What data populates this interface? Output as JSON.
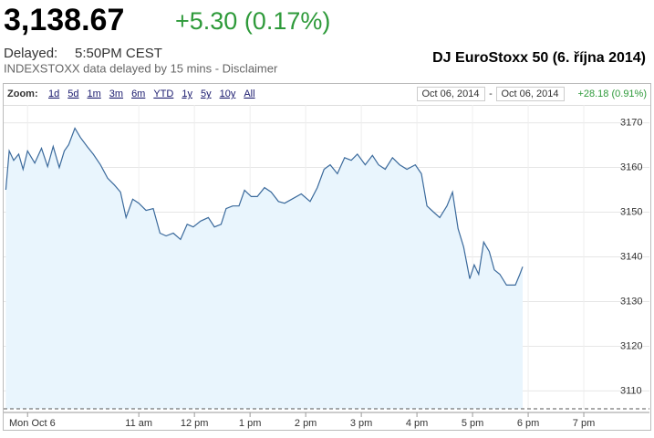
{
  "header": {
    "price": "3,138.67",
    "change": "+5.30 (0.17%)",
    "delayed_label": "Delayed:",
    "delayed_time": "5:50PM CEST",
    "source_note": "INDEXSTOXX data delayed by 15 mins - Disclaimer",
    "title": "DJ EuroStoxx 50 (6. října 2014)"
  },
  "toolbar": {
    "zoom_label": "Zoom:",
    "zoom_options": [
      "1d",
      "5d",
      "1m",
      "3m",
      "6m",
      "YTD",
      "1y",
      "5y",
      "10y",
      "All"
    ],
    "range_start": "Oct 06, 2014",
    "range_separator": "-",
    "range_end": "Oct 06, 2014",
    "range_change": "+28.18 (0.91%)"
  },
  "chart_data": {
    "type": "area",
    "color": "#3b6a9c",
    "fill_color": "#e9f5fd",
    "grid": true,
    "x": [
      8.61,
      8.67,
      8.75,
      8.84,
      8.92,
      9,
      9.13,
      9.25,
      9.36,
      9.46,
      9.57,
      9.66,
      9.74,
      9.85,
      9.95,
      10.07,
      10.18,
      10.31,
      10.44,
      10.56,
      10.67,
      10.77,
      10.89,
      11,
      11.13,
      11.26,
      11.38,
      11.49,
      11.62,
      11.75,
      11.87,
      11.98,
      12.11,
      12.25,
      12.36,
      12.48,
      12.57,
      12.69,
      12.8,
      12.9,
      13.02,
      13.13,
      13.26,
      13.38,
      13.51,
      13.62,
      13.75,
      13.92,
      14.08,
      14.21,
      14.33,
      14.44,
      14.57,
      14.7,
      14.82,
      14.93,
      15.07,
      15.2,
      15.31,
      15.43,
      15.56,
      15.69,
      15.82,
      15.97,
      16.08,
      16.18,
      16.3,
      16.41,
      16.54,
      16.64,
      16.74,
      16.84,
      16.95,
      17.03,
      17.11,
      17.2,
      17.3,
      17.39,
      17.49,
      17.61,
      17.77,
      17.85,
      17.9
    ],
    "values": [
      3155,
      3163.7,
      3161.6,
      3163,
      3159.6,
      3163.7,
      3161,
      3164.3,
      3160.2,
      3164.7,
      3160,
      3163.7,
      3165.1,
      3168.8,
      3166.7,
      3164.7,
      3163,
      3160.6,
      3157.6,
      3156.1,
      3154.5,
      3148.8,
      3152.9,
      3152,
      3150.4,
      3150.8,
      3145.3,
      3144.7,
      3145.3,
      3143.9,
      3147.3,
      3146.7,
      3148,
      3148.8,
      3146.7,
      3147.3,
      3150.8,
      3151.4,
      3151.4,
      3154.9,
      3153.5,
      3153.5,
      3155.5,
      3154.5,
      3152.4,
      3152,
      3152.9,
      3154.1,
      3152.4,
      3155.5,
      3159.6,
      3160.6,
      3158.6,
      3162.2,
      3161.6,
      3163,
      3160.6,
      3162.7,
      3160.6,
      3159.6,
      3162.2,
      3160.6,
      3159.6,
      3160.6,
      3158.6,
      3151.4,
      3150,
      3148.8,
      3151.4,
      3154.5,
      3146.3,
      3142.2,
      3135.1,
      3138.2,
      3136.1,
      3143.3,
      3141.2,
      3137.1,
      3136.1,
      3133.7,
      3133.7,
      3136.1,
      3137.8
    ],
    "xlim": [
      8.57,
      20.18
    ],
    "xticks": [
      {
        "value": 9,
        "label": "Mon Oct 6"
      },
      {
        "value": 11,
        "label": "11 am"
      },
      {
        "value": 12,
        "label": "12 pm"
      },
      {
        "value": 13,
        "label": "1 pm"
      },
      {
        "value": 14,
        "label": "2 pm"
      },
      {
        "value": 15,
        "label": "3 pm"
      },
      {
        "value": 16,
        "label": "4 pm"
      },
      {
        "value": 17,
        "label": "5 pm"
      },
      {
        "value": 18,
        "label": "6 pm"
      },
      {
        "value": 19,
        "label": "7 pm"
      }
    ],
    "ylim": [
      3106,
      3174
    ],
    "yticks": [
      3110,
      3120,
      3130,
      3140,
      3150,
      3160,
      3170
    ]
  }
}
